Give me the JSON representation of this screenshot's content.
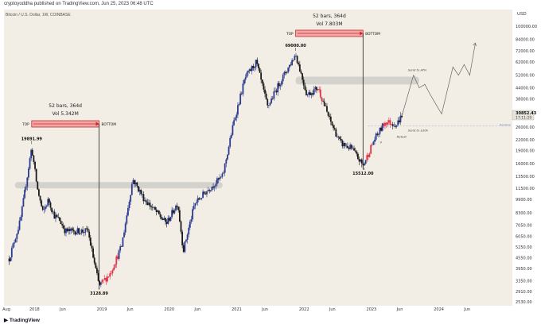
{
  "header": {
    "published": "cryptoyoddha published on TradingView.com, Jun 25, 2023 06:48 UTC",
    "symbol": "Bitcoin / U.S. Dollar, 1W, COINBASE",
    "currency": "USD"
  },
  "branding": {
    "logo_text": "TradingView"
  },
  "colors": {
    "plot_bg": "#f2eee5",
    "candle_up": "#2b3a8f",
    "candle_down": "#1a1a1a",
    "candle_red": "#e0364c",
    "range_fill": "#f3a8a8",
    "range_border": "#c62828",
    "zone": "#cfcdc8",
    "projection": "#666666"
  },
  "chart_data": {
    "type": "candlestick",
    "title": "Bitcoin / U.S. Dollar, 1W, COINBASE",
    "scale": "log",
    "ylim": [
      2530,
      100000
    ],
    "y_ticks": [
      "100000.00",
      "84000.00",
      "72000.00",
      "62000.00",
      "52000.00",
      "44000.00",
      "38000.00",
      "26000.00",
      "22000.00",
      "19000.00",
      "16000.00",
      "13500.00",
      "11500.00",
      "9900.00",
      "8300.00",
      "7050.00",
      "6050.00",
      "5250.00",
      "4550.00",
      "3950.00",
      "3350.00",
      "2910.00",
      "2530.00"
    ],
    "x_ticks": [
      "Aug",
      "2018",
      "Jun",
      "2019",
      "Jun",
      "2020",
      "Jun",
      "2021",
      "Jun",
      "2022",
      "Jun",
      "2023",
      "Jun",
      "2024",
      "Jun"
    ],
    "price_path": [
      [
        "2017-08",
        4500
      ],
      [
        "2017-10",
        7500
      ],
      [
        "2017-12",
        19891.99
      ],
      [
        "2018-01",
        11500
      ],
      [
        "2018-02",
        8300
      ],
      [
        "2018-03",
        9900
      ],
      [
        "2018-04",
        8000
      ],
      [
        "2018-05",
        7500
      ],
      [
        "2018-06",
        6500
      ],
      [
        "2018-08",
        6500
      ],
      [
        "2018-10",
        6500
      ],
      [
        "2018-12",
        3128.89
      ],
      [
        "2019-02",
        3700
      ],
      [
        "2019-04",
        5300
      ],
      [
        "2019-06",
        13000
      ],
      [
        "2019-08",
        10000
      ],
      [
        "2019-10",
        8500
      ],
      [
        "2019-12",
        7200
      ],
      [
        "2020-02",
        9500
      ],
      [
        "2020-03",
        5000
      ],
      [
        "2020-05",
        9300
      ],
      [
        "2020-07",
        11000
      ],
      [
        "2020-10",
        13500
      ],
      [
        "2020-12",
        28000
      ],
      [
        "2021-02",
        50000
      ],
      [
        "2021-04",
        62000
      ],
      [
        "2021-06",
        34000
      ],
      [
        "2021-08",
        46000
      ],
      [
        "2021-10",
        60000
      ],
      [
        "2021-11",
        69000
      ],
      [
        "2022-01",
        40000
      ],
      [
        "2022-03",
        44000
      ],
      [
        "2022-05",
        29000
      ],
      [
        "2022-07",
        21000
      ],
      [
        "2022-09",
        19500
      ],
      [
        "2022-11",
        15512
      ],
      [
        "2023-01",
        22000
      ],
      [
        "2023-03",
        28000
      ],
      [
        "2023-05",
        27000
      ],
      [
        "2023-06",
        30852.43
      ]
    ],
    "projection": [
      [
        "2023-06",
        30852.43
      ],
      [
        "2023-08",
        52000
      ],
      [
        "2023-09",
        44000
      ],
      [
        "2023-10",
        46000
      ],
      [
        "2023-11",
        40000
      ],
      [
        "2024-01",
        31000
      ],
      [
        "2024-03",
        58000
      ],
      [
        "2024-04",
        52000
      ],
      [
        "2024-05",
        60000
      ],
      [
        "2024-06",
        52000
      ],
      [
        "2024-07",
        80000
      ]
    ],
    "last_price": {
      "value": "30852.43",
      "countdown": "17:11:29"
    },
    "ranges": [
      {
        "name": "2017-2018",
        "start": "2017-12",
        "end": "2018-12",
        "bars_label": "52 bars, 364d",
        "vol_label": "Vol 5.342M",
        "top_label": "TOP",
        "bottom_label": "BOTTOM"
      },
      {
        "name": "2021-2022",
        "start": "2021-11",
        "end": "2022-11",
        "bars_label": "52 bars, 364d",
        "vol_label": "Vol 7.803M",
        "top_label": "TOP",
        "bottom_label": "BOTTOM"
      }
    ],
    "price_labels": [
      {
        "text": "19891.99",
        "date": "2017-12",
        "value": 19891.99
      },
      {
        "text": "3128.89",
        "date": "2018-12",
        "value": 3128.89
      },
      {
        "text": "69000.00",
        "date": "2021-11",
        "value": 69000
      },
      {
        "text": "15512.00",
        "date": "2022-11",
        "value": 15512
      }
    ],
    "zones": [
      {
        "from": "2017-09",
        "to": "2020-10",
        "low": 11500,
        "high": 12500
      },
      {
        "from": "2021-11",
        "to": "2023-09",
        "low": 46000,
        "high": 51000
      }
    ],
    "annotations": [
      {
        "text": "Send to ATH",
        "date": "2023-07",
        "value": 55000
      },
      {
        "text": "Send to $10k",
        "date": "2023-07",
        "value": 24600
      },
      {
        "text": "Retest",
        "date": "2023-05",
        "value": 22600
      },
      {
        "text": "Recline",
        "date": "2024-06",
        "value": 26500
      },
      {
        "text": "V",
        "date": "2022-11",
        "value": 14700
      },
      {
        "text": "V",
        "date": "2023-02",
        "value": 21000
      }
    ]
  }
}
